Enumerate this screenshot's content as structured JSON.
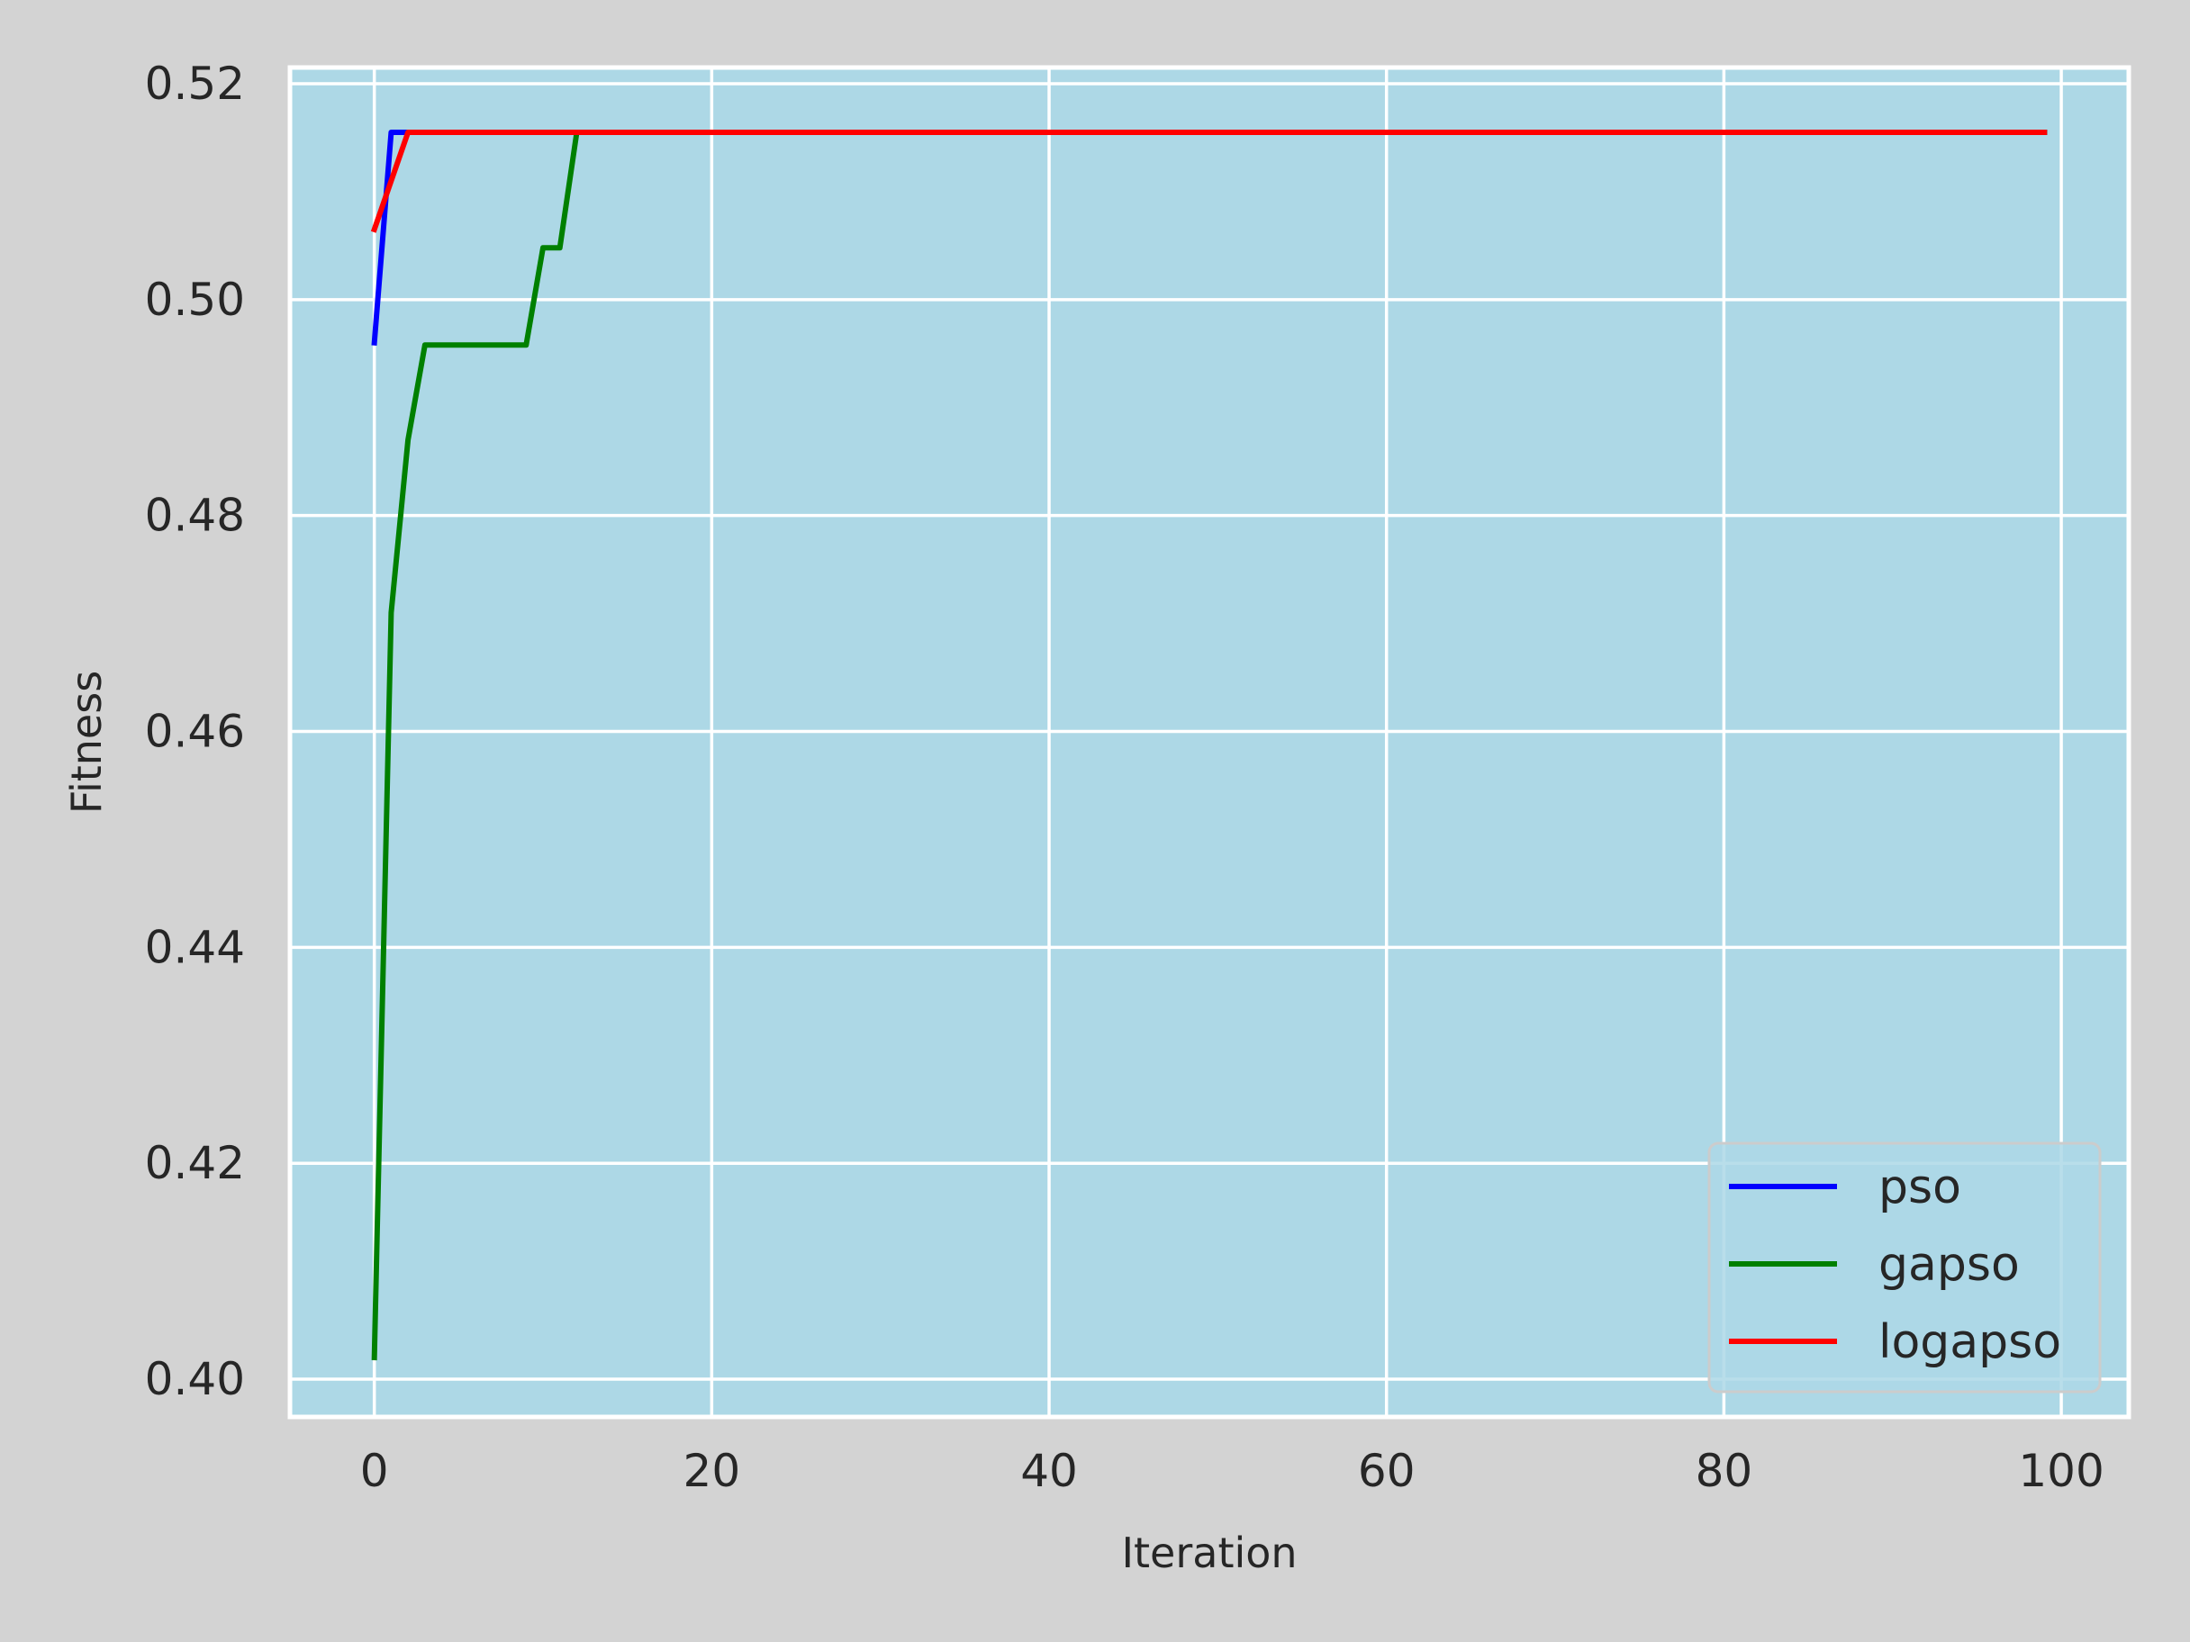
{
  "chart_data": {
    "type": "line",
    "title": "",
    "xlabel": "Iteration",
    "ylabel": "Fitness",
    "xlim": [
      -5,
      104
    ],
    "ylim": [
      0.3965,
      0.5215
    ],
    "xticks": [
      0,
      20,
      40,
      60,
      80,
      100
    ],
    "xtick_labels": [
      "0",
      "20",
      "40",
      "60",
      "80",
      "100"
    ],
    "yticks": [
      0.4,
      0.42,
      0.44,
      0.46,
      0.48,
      0.5,
      0.52
    ],
    "ytick_labels": [
      "0.40",
      "0.42",
      "0.44",
      "0.46",
      "0.48",
      "0.50",
      "0.52"
    ],
    "grid": true,
    "legend_position": "lower-right",
    "plot_background": "#add8e6",
    "figure_background": "#d3d3d3",
    "series": [
      {
        "name": "pso",
        "color": "#0000ff",
        "x": [
          0,
          1,
          99
        ],
        "y": [
          0.496,
          0.5155,
          0.5155
        ]
      },
      {
        "name": "gapso",
        "color": "#008000",
        "x": [
          0,
          1,
          2,
          3,
          9,
          10,
          11,
          12,
          99
        ],
        "y": [
          0.402,
          0.471,
          0.487,
          0.4958,
          0.4958,
          0.5048,
          0.5048,
          0.5155,
          0.5155
        ]
      },
      {
        "name": "logapso",
        "color": "#ff0000",
        "x": [
          0,
          2,
          99
        ],
        "y": [
          0.5065,
          0.5155,
          0.5155
        ]
      }
    ]
  }
}
